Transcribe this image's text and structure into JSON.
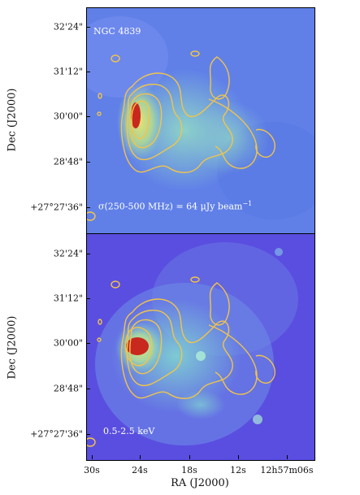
{
  "top_panel": {
    "label": "NGC 4839",
    "annotation_prefix": "σ(250-500 MHz) = 64 μJy beam",
    "annotation_sup": "−1",
    "colors": {
      "background": "#5e7ce6",
      "contour": "#f2c44a",
      "core": "#c8281e"
    }
  },
  "bottom_panel": {
    "label": "0.5-2.5 keV",
    "colors": {
      "background": "#5a52e0",
      "contour": "#f2c44a",
      "core": "#c8281e"
    }
  },
  "axes": {
    "ylabel": "Dec (J2000)",
    "xlabel": "RA (J2000)",
    "yticks": [
      "32'24\"",
      "31'12\"",
      "30'00\"",
      "28'48\"",
      "+27°27'36\""
    ],
    "xticks": [
      "30s",
      "24s",
      "18s",
      "12s",
      "12h57m06s"
    ]
  }
}
